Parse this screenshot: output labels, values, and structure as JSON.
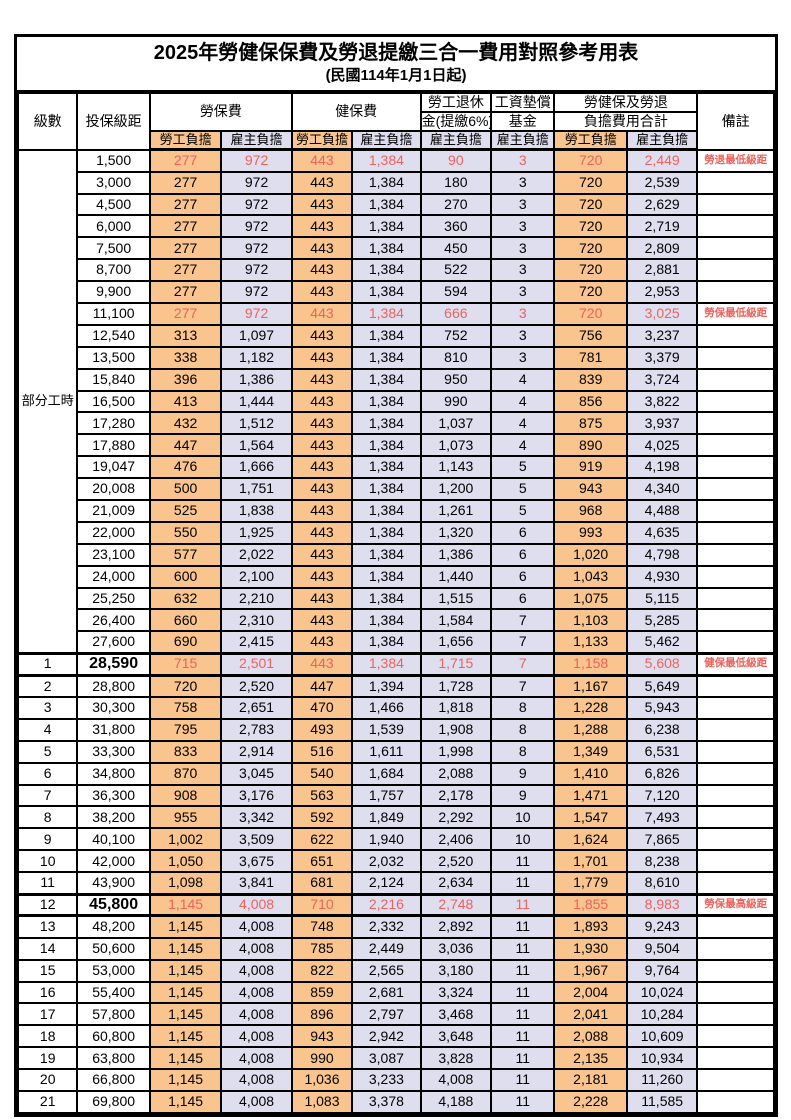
{
  "page": {
    "title": "2025年勞健保保費及勞退提繳三合一費用對照參考用表",
    "subtitle": "(民國114年1月1日起)"
  },
  "colors": {
    "employee_column_bg": "#f9c48e",
    "employer_column_bg": "#dfdeef",
    "highlight_text": "#ec625c",
    "border": "#000000"
  },
  "table": {
    "headers": {
      "level": "級數",
      "bracket": "投保級距",
      "labor_fee": "勞保費",
      "health_fee": "健保費",
      "pension_line1": "勞工退休",
      "pension_line2": "金(提繳6%)",
      "wage_fund_line1": "工資墊償",
      "wage_fund_line2": "基金",
      "total_line1": "勞健保及勞退",
      "total_line2": "負擔費用合計",
      "employee": "勞工負擔",
      "employer": "雇主負擔",
      "note": "備註"
    },
    "part_time": {
      "group_label": "部分工時",
      "rows": [
        {
          "bracket": "1,500",
          "v": [
            "277",
            "972",
            "443",
            "1,384",
            "90",
            "3",
            "720",
            "2,449"
          ],
          "note": "勞退最低級距",
          "hl": true
        },
        {
          "bracket": "3,000",
          "v": [
            "277",
            "972",
            "443",
            "1,384",
            "180",
            "3",
            "720",
            "2,539"
          ]
        },
        {
          "bracket": "4,500",
          "v": [
            "277",
            "972",
            "443",
            "1,384",
            "270",
            "3",
            "720",
            "2,629"
          ]
        },
        {
          "bracket": "6,000",
          "v": [
            "277",
            "972",
            "443",
            "1,384",
            "360",
            "3",
            "720",
            "2,719"
          ]
        },
        {
          "bracket": "7,500",
          "v": [
            "277",
            "972",
            "443",
            "1,384",
            "450",
            "3",
            "720",
            "2,809"
          ]
        },
        {
          "bracket": "8,700",
          "v": [
            "277",
            "972",
            "443",
            "1,384",
            "522",
            "3",
            "720",
            "2,881"
          ]
        },
        {
          "bracket": "9,900",
          "v": [
            "277",
            "972",
            "443",
            "1,384",
            "594",
            "3",
            "720",
            "2,953"
          ]
        },
        {
          "bracket": "11,100",
          "v": [
            "277",
            "972",
            "443",
            "1,384",
            "666",
            "3",
            "720",
            "3,025"
          ],
          "note": "勞保最低級距",
          "hl": true
        },
        {
          "bracket": "12,540",
          "v": [
            "313",
            "1,097",
            "443",
            "1,384",
            "752",
            "3",
            "756",
            "3,237"
          ]
        },
        {
          "bracket": "13,500",
          "v": [
            "338",
            "1,182",
            "443",
            "1,384",
            "810",
            "3",
            "781",
            "3,379"
          ]
        },
        {
          "bracket": "15,840",
          "v": [
            "396",
            "1,386",
            "443",
            "1,384",
            "950",
            "4",
            "839",
            "3,724"
          ]
        },
        {
          "bracket": "16,500",
          "v": [
            "413",
            "1,444",
            "443",
            "1,384",
            "990",
            "4",
            "856",
            "3,822"
          ]
        },
        {
          "bracket": "17,280",
          "v": [
            "432",
            "1,512",
            "443",
            "1,384",
            "1,037",
            "4",
            "875",
            "3,937"
          ]
        },
        {
          "bracket": "17,880",
          "v": [
            "447",
            "1,564",
            "443",
            "1,384",
            "1,073",
            "4",
            "890",
            "4,025"
          ]
        },
        {
          "bracket": "19,047",
          "v": [
            "476",
            "1,666",
            "443",
            "1,384",
            "1,143",
            "5",
            "919",
            "4,198"
          ]
        },
        {
          "bracket": "20,008",
          "v": [
            "500",
            "1,751",
            "443",
            "1,384",
            "1,200",
            "5",
            "943",
            "4,340"
          ]
        },
        {
          "bracket": "21,009",
          "v": [
            "525",
            "1,838",
            "443",
            "1,384",
            "1,261",
            "5",
            "968",
            "4,488"
          ]
        },
        {
          "bracket": "22,000",
          "v": [
            "550",
            "1,925",
            "443",
            "1,384",
            "1,320",
            "6",
            "993",
            "4,635"
          ]
        },
        {
          "bracket": "23,100",
          "v": [
            "577",
            "2,022",
            "443",
            "1,384",
            "1,386",
            "6",
            "1,020",
            "4,798"
          ]
        },
        {
          "bracket": "24,000",
          "v": [
            "600",
            "2,100",
            "443",
            "1,384",
            "1,440",
            "6",
            "1,043",
            "4,930"
          ]
        },
        {
          "bracket": "25,250",
          "v": [
            "632",
            "2,210",
            "443",
            "1,384",
            "1,515",
            "6",
            "1,075",
            "5,115"
          ]
        },
        {
          "bracket": "26,400",
          "v": [
            "660",
            "2,310",
            "443",
            "1,384",
            "1,584",
            "7",
            "1,103",
            "5,285"
          ]
        },
        {
          "bracket": "27,600",
          "v": [
            "690",
            "2,415",
            "443",
            "1,384",
            "1,656",
            "7",
            "1,133",
            "5,462"
          ]
        }
      ]
    },
    "levels": [
      {
        "level": "1",
        "bracket": "28,590",
        "v": [
          "715",
          "2,501",
          "443",
          "1,384",
          "1,715",
          "7",
          "1,158",
          "5,608"
        ],
        "note": "健保最低級距",
        "hl": true,
        "emph": true,
        "thick": true
      },
      {
        "level": "2",
        "bracket": "28,800",
        "v": [
          "720",
          "2,520",
          "447",
          "1,394",
          "1,728",
          "7",
          "1,167",
          "5,649"
        ]
      },
      {
        "level": "3",
        "bracket": "30,300",
        "v": [
          "758",
          "2,651",
          "470",
          "1,466",
          "1,818",
          "8",
          "1,228",
          "5,943"
        ]
      },
      {
        "level": "4",
        "bracket": "31,800",
        "v": [
          "795",
          "2,783",
          "493",
          "1,539",
          "1,908",
          "8",
          "1,288",
          "6,238"
        ]
      },
      {
        "level": "5",
        "bracket": "33,300",
        "v": [
          "833",
          "2,914",
          "516",
          "1,611",
          "1,998",
          "8",
          "1,349",
          "6,531"
        ]
      },
      {
        "level": "6",
        "bracket": "34,800",
        "v": [
          "870",
          "3,045",
          "540",
          "1,684",
          "2,088",
          "9",
          "1,410",
          "6,826"
        ]
      },
      {
        "level": "7",
        "bracket": "36,300",
        "v": [
          "908",
          "3,176",
          "563",
          "1,757",
          "2,178",
          "9",
          "1,471",
          "7,120"
        ]
      },
      {
        "level": "8",
        "bracket": "38,200",
        "v": [
          "955",
          "3,342",
          "592",
          "1,849",
          "2,292",
          "10",
          "1,547",
          "7,493"
        ]
      },
      {
        "level": "9",
        "bracket": "40,100",
        "v": [
          "1,002",
          "3,509",
          "622",
          "1,940",
          "2,406",
          "10",
          "1,624",
          "7,865"
        ]
      },
      {
        "level": "10",
        "bracket": "42,000",
        "v": [
          "1,050",
          "3,675",
          "651",
          "2,032",
          "2,520",
          "11",
          "1,701",
          "8,238"
        ]
      },
      {
        "level": "11",
        "bracket": "43,900",
        "v": [
          "1,098",
          "3,841",
          "681",
          "2,124",
          "2,634",
          "11",
          "1,779",
          "8,610"
        ]
      },
      {
        "level": "12",
        "bracket": "45,800",
        "v": [
          "1,145",
          "4,008",
          "710",
          "2,216",
          "2,748",
          "11",
          "1,855",
          "8,983"
        ],
        "note": "勞保最高級距",
        "hl": true,
        "emph": true,
        "thick": true
      },
      {
        "level": "13",
        "bracket": "48,200",
        "v": [
          "1,145",
          "4,008",
          "748",
          "2,332",
          "2,892",
          "11",
          "1,893",
          "9,243"
        ]
      },
      {
        "level": "14",
        "bracket": "50,600",
        "v": [
          "1,145",
          "4,008",
          "785",
          "2,449",
          "3,036",
          "11",
          "1,930",
          "9,504"
        ]
      },
      {
        "level": "15",
        "bracket": "53,000",
        "v": [
          "1,145",
          "4,008",
          "822",
          "2,565",
          "3,180",
          "11",
          "1,967",
          "9,764"
        ]
      },
      {
        "level": "16",
        "bracket": "55,400",
        "v": [
          "1,145",
          "4,008",
          "859",
          "2,681",
          "3,324",
          "11",
          "2,004",
          "10,024"
        ]
      },
      {
        "level": "17",
        "bracket": "57,800",
        "v": [
          "1,145",
          "4,008",
          "896",
          "2,797",
          "3,468",
          "11",
          "2,041",
          "10,284"
        ]
      },
      {
        "level": "18",
        "bracket": "60,800",
        "v": [
          "1,145",
          "4,008",
          "943",
          "2,942",
          "3,648",
          "11",
          "2,088",
          "10,609"
        ]
      },
      {
        "level": "19",
        "bracket": "63,800",
        "v": [
          "1,145",
          "4,008",
          "990",
          "3,087",
          "3,828",
          "11",
          "2,135",
          "10,934"
        ]
      },
      {
        "level": "20",
        "bracket": "66,800",
        "v": [
          "1,145",
          "4,008",
          "1,036",
          "3,233",
          "4,008",
          "11",
          "2,181",
          "11,260"
        ]
      },
      {
        "level": "21",
        "bracket": "69,800",
        "v": [
          "1,145",
          "4,008",
          "1,083",
          "3,378",
          "4,188",
          "11",
          "2,228",
          "11,585"
        ]
      }
    ]
  }
}
